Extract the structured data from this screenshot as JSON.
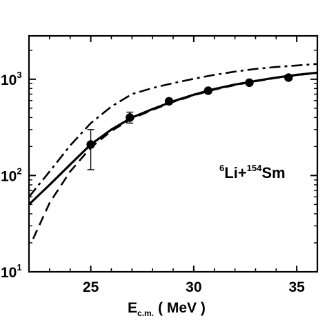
{
  "chart_data": {
    "type": "line",
    "xlabel_main": "E",
    "xlabel_sub": "c.m.",
    "xlabel_unit": "( MeV )",
    "ylabel": "",
    "xlim": [
      22,
      36
    ],
    "ylim_log10": [
      1,
      3.45
    ],
    "y_scale": "log",
    "x_ticks": [
      {
        "value": 25,
        "label": "25"
      },
      {
        "value": 30,
        "label": "30"
      },
      {
        "value": 35,
        "label": "35"
      }
    ],
    "y_ticks": [
      {
        "exp": 1,
        "base": "10",
        "sup": "1"
      },
      {
        "exp": 2,
        "base": "10",
        "sup": "2"
      },
      {
        "exp": 3,
        "base": "10",
        "sup": "3"
      }
    ],
    "annotation": {
      "pre_sup": "6",
      "a": "Li+",
      "mid_sup": "154",
      "b": "Sm"
    },
    "series": [
      {
        "style": "solid",
        "x": [
          22,
          23,
          24,
          25,
          26,
          27,
          28,
          29,
          30,
          31,
          32,
          33,
          34,
          35,
          36
        ],
        "y": [
          50,
          80,
          130,
          210,
          300,
          400,
          490,
          590,
          690,
          790,
          880,
          960,
          1040,
          1110,
          1170
        ]
      },
      {
        "style": "dash",
        "x": [
          22.2,
          23,
          24,
          25,
          26,
          27,
          28,
          29,
          30,
          31,
          32,
          33,
          34,
          35,
          36
        ],
        "y": [
          22,
          52,
          110,
          195,
          290,
          390,
          480,
          580,
          680,
          780,
          870,
          950,
          1030,
          1100,
          1160
        ]
      },
      {
        "style": "dashdot",
        "x": [
          22,
          23,
          24,
          25,
          26,
          27,
          28,
          29,
          30,
          31,
          32,
          33,
          34,
          35,
          36
        ],
        "y": [
          60,
          110,
          205,
          350,
          520,
          700,
          810,
          910,
          1010,
          1110,
          1200,
          1280,
          1340,
          1390,
          1440
        ]
      }
    ],
    "points": [
      {
        "x": 25.0,
        "y": 210,
        "err_low": 115,
        "err_high": 300
      },
      {
        "x": 26.9,
        "y": 400,
        "err_low": 350,
        "err_high": 455
      },
      {
        "x": 28.8,
        "y": 590
      },
      {
        "x": 30.7,
        "y": 760
      },
      {
        "x": 32.7,
        "y": 920
      },
      {
        "x": 34.6,
        "y": 1040
      }
    ]
  }
}
